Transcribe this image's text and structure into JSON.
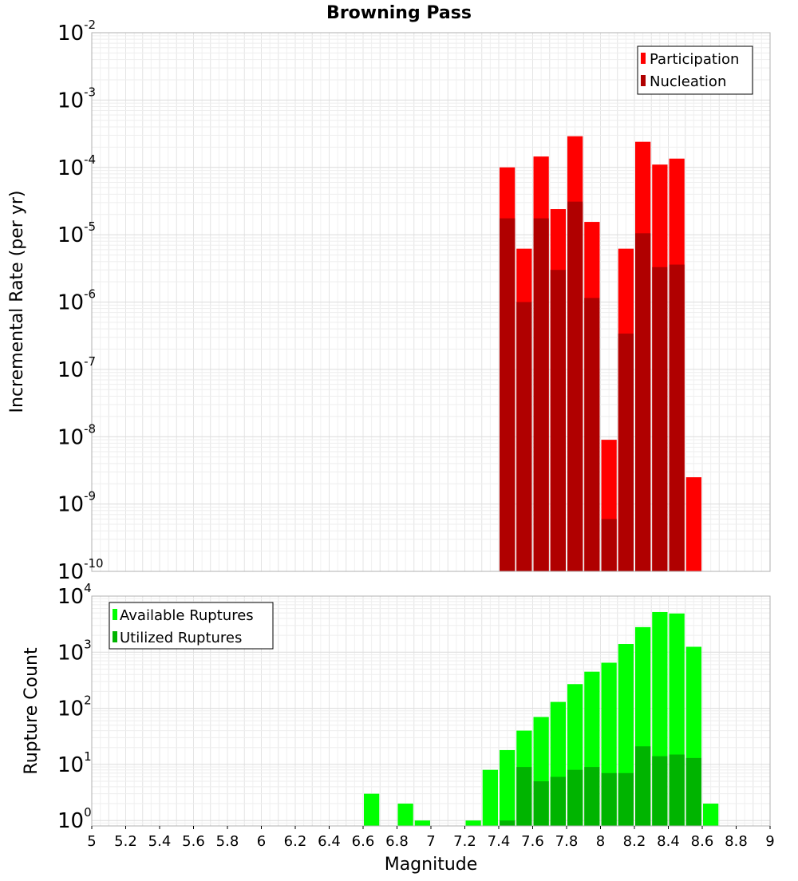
{
  "chart_data": [
    {
      "type": "bar",
      "title": "Browning Pass",
      "xlabel": "",
      "ylabel": "Incremental Rate (per yr)",
      "yscale": "log",
      "ylim": [
        1e-10,
        0.01
      ],
      "xlim": [
        5,
        9
      ],
      "bar_width": 0.1,
      "grid": true,
      "legend_position": "top-right",
      "y_ticks": [
        {
          "base": "10",
          "exp": "-10",
          "value": 1e-10
        },
        {
          "base": "10",
          "exp": "-9",
          "value": 1e-09
        },
        {
          "base": "10",
          "exp": "-8",
          "value": 1e-08
        },
        {
          "base": "10",
          "exp": "-7",
          "value": 1e-07
        },
        {
          "base": "10",
          "exp": "-6",
          "value": 1e-06
        },
        {
          "base": "10",
          "exp": "-5",
          "value": 1e-05
        },
        {
          "base": "10",
          "exp": "-4",
          "value": 0.0001
        },
        {
          "base": "10",
          "exp": "-3",
          "value": 0.001
        },
        {
          "base": "10",
          "exp": "-2",
          "value": 0.01
        }
      ],
      "series": [
        {
          "name": "Participation",
          "color": "#ff0000",
          "x": [
            7.45,
            7.55,
            7.65,
            7.75,
            7.85,
            7.95,
            8.05,
            8.15,
            8.25,
            8.35,
            8.45,
            8.55
          ],
          "values": [
            0.0001,
            6.2e-06,
            0.000145,
            2.4e-05,
            0.00029,
            1.55e-05,
            9e-09,
            6.2e-06,
            0.00024,
            0.00011,
            0.000135,
            2.5e-09
          ]
        },
        {
          "name": "Nucleation",
          "color": "#b00000",
          "x": [
            7.45,
            7.55,
            7.65,
            7.75,
            7.85,
            7.95,
            8.05,
            8.15,
            8.25,
            8.35,
            8.45
          ],
          "values": [
            1.75e-05,
            1e-06,
            1.75e-05,
            3e-06,
            3.1e-05,
            1.15e-06,
            6e-10,
            3.4e-07,
            1.05e-05,
            3.3e-06,
            3.6e-06
          ]
        }
      ]
    },
    {
      "type": "bar",
      "title": "",
      "xlabel": "Magnitude",
      "ylabel": "Rupture Count",
      "yscale": "log",
      "ylim": [
        0.8,
        10000
      ],
      "xlim": [
        5,
        9
      ],
      "bar_width": 0.1,
      "grid": true,
      "legend_position": "top-left",
      "x_ticks": [
        "5",
        "5.2",
        "5.4",
        "5.6",
        "5.8",
        "6",
        "6.2",
        "6.4",
        "6.6",
        "6.8",
        "7",
        "7.2",
        "7.4",
        "7.6",
        "7.8",
        "8",
        "8.2",
        "8.4",
        "8.6",
        "8.8",
        "9"
      ],
      "y_ticks": [
        {
          "base": "10",
          "exp": "0",
          "value": 1
        },
        {
          "base": "10",
          "exp": "1",
          "value": 10
        },
        {
          "base": "10",
          "exp": "2",
          "value": 100
        },
        {
          "base": "10",
          "exp": "3",
          "value": 1000
        },
        {
          "base": "10",
          "exp": "4",
          "value": 10000
        }
      ],
      "series": [
        {
          "name": "Available Ruptures",
          "color": "#00ff00",
          "x": [
            6.65,
            6.85,
            6.95,
            7.25,
            7.35,
            7.45,
            7.55,
            7.65,
            7.75,
            7.85,
            7.95,
            8.05,
            8.15,
            8.25,
            8.35,
            8.45,
            8.55,
            8.65
          ],
          "values": [
            3,
            2,
            1,
            1,
            8,
            18,
            40,
            70,
            130,
            270,
            450,
            650,
            1400,
            2800,
            5200,
            4900,
            1250,
            2
          ]
        },
        {
          "name": "Utilized Ruptures",
          "color": "#00b400",
          "x": [
            7.45,
            7.55,
            7.65,
            7.75,
            7.85,
            7.95,
            8.05,
            8.15,
            8.25,
            8.35,
            8.45,
            8.55
          ],
          "values": [
            1,
            9,
            5,
            6,
            8,
            9,
            7,
            7,
            21,
            14,
            15,
            13
          ]
        }
      ]
    }
  ]
}
